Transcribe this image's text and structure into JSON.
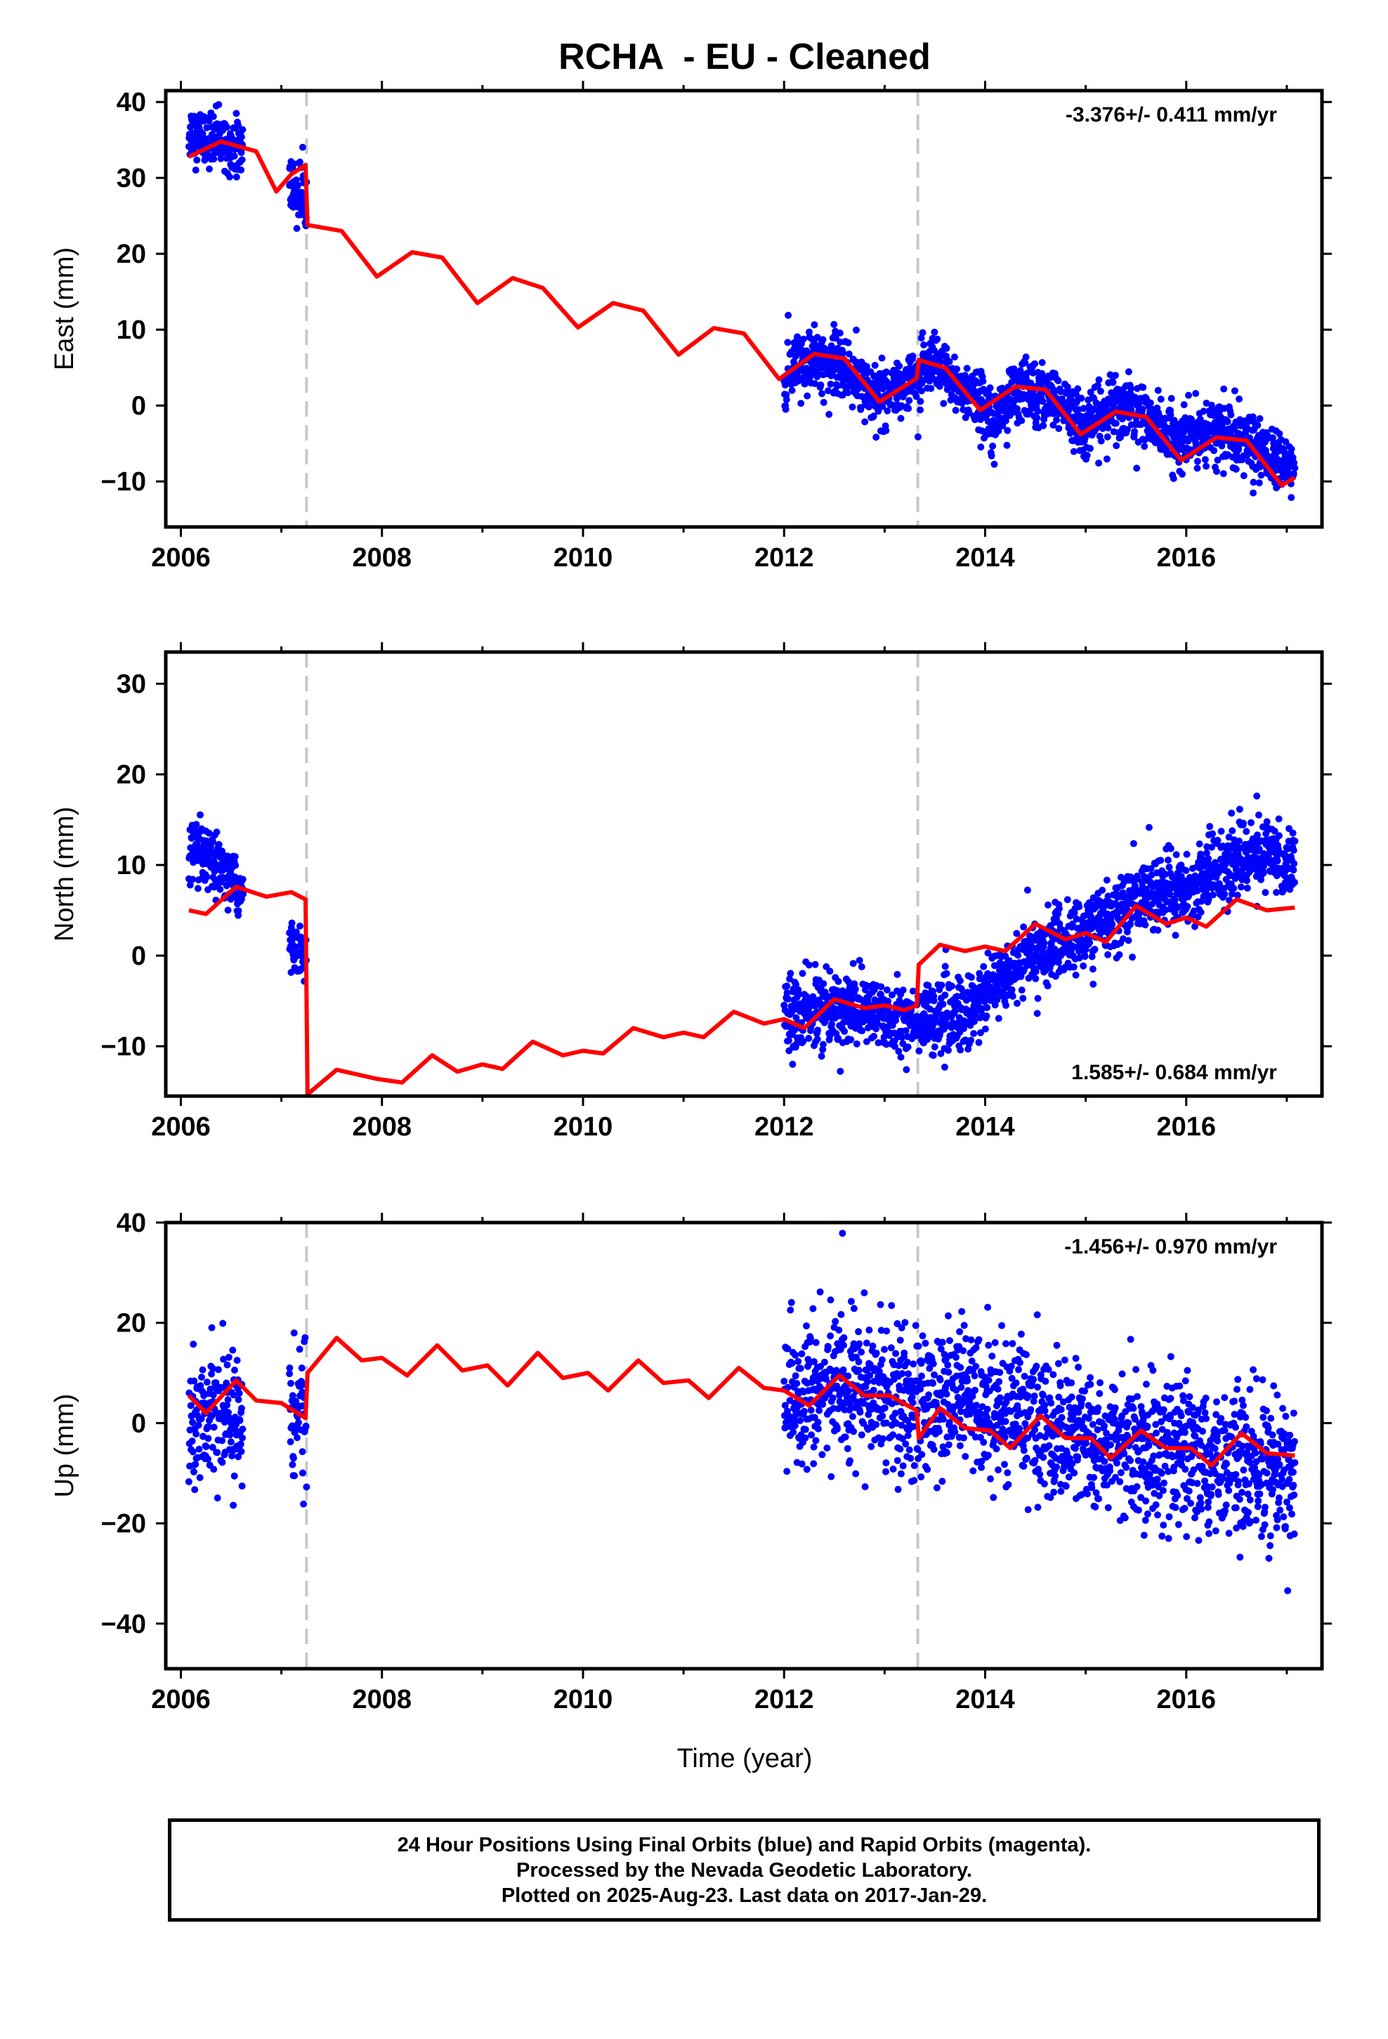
{
  "chart_data": {
    "type": "scatter",
    "title": "RCHA  - EU - Cleaned",
    "xlabel": "Time (year)",
    "xlim": [
      2005.85,
      2017.35
    ],
    "xticks": [
      2006,
      2008,
      2010,
      2012,
      2014,
      2016
    ],
    "step_lines": [
      2007.25,
      2013.33
    ],
    "colors": {
      "data": "#0000ff",
      "model": "#ff0000",
      "steps": "#c8c8c8",
      "frame": "#000000"
    },
    "panels": [
      {
        "ylabel": "East (mm)",
        "ylim": [
          -16,
          41.5
        ],
        "yticks": [
          -10,
          0,
          10,
          20,
          30,
          40
        ],
        "rate": "-3.376+/- 0.411 mm/yr",
        "rate_position": "top-right",
        "data_segments": [
          {
            "start": 2006.08,
            "end": 2006.62,
            "values": [
              36,
              34
            ],
            "noise": 1.8
          },
          {
            "start": 2007.08,
            "end": 2007.25,
            "values": [
              29,
              27
            ],
            "noise": 2.2
          },
          {
            "start": 2012.0,
            "end": 2017.08,
            "values": [
              4,
              6,
              5,
              1,
              3,
              5,
              2,
              -1,
              2,
              1,
              -3,
              0,
              -1,
              -5,
              -3,
              -4,
              -6,
              -9
            ],
            "noise": 2.0
          }
        ],
        "model": {
          "x": [
            2006.08,
            2006.4,
            2006.75,
            2006.95,
            2007.1,
            2007.24,
            2007.26,
            2007.6,
            2007.95,
            2008.3,
            2008.6,
            2008.95,
            2009.3,
            2009.6,
            2009.95,
            2010.3,
            2010.6,
            2010.95,
            2011.3,
            2011.6,
            2011.95,
            2012.3,
            2012.6,
            2012.95,
            2013.32,
            2013.34,
            2013.6,
            2013.95,
            2014.3,
            2014.6,
            2014.95,
            2015.3,
            2015.6,
            2015.95,
            2016.3,
            2016.6,
            2016.95,
            2017.08
          ],
          "y": [
            32.8,
            34.8,
            33.5,
            28.2,
            30.5,
            31.7,
            23.8,
            23,
            17,
            20.2,
            19.5,
            13.5,
            16.8,
            15.5,
            10.3,
            13.5,
            12.5,
            6.7,
            10.2,
            9.5,
            3.5,
            6.8,
            6.2,
            0.5,
            3.6,
            6,
            5,
            -0.6,
            2.5,
            2.1,
            -3.8,
            -0.8,
            -1.5,
            -7.2,
            -4.2,
            -4.6,
            -10.5,
            -9.5
          ]
        }
      },
      {
        "ylabel": "North (mm)",
        "ylim": [
          -15.5,
          33.5
        ],
        "yticks": [
          -10,
          0,
          10,
          20,
          30
        ],
        "rate": "1.585+/- 0.684 mm/yr",
        "rate_position": "bottom-right",
        "data_segments": [
          {
            "start": 2006.08,
            "end": 2006.62,
            "values": [
              12,
              7
            ],
            "noise": 1.6
          },
          {
            "start": 2007.08,
            "end": 2007.25,
            "values": [
              1,
              0
            ],
            "noise": 1.5
          },
          {
            "start": 2012.0,
            "end": 2017.08,
            "values": [
              -7,
              -6,
              -6,
              -6,
              -7,
              -7,
              -7,
              -6,
              -3,
              0,
              1,
              2,
              4,
              6,
              7,
              7,
              9,
              11,
              11,
              10
            ],
            "noise": 2.0
          }
        ],
        "model": {
          "x": [
            2006.08,
            2006.25,
            2006.55,
            2006.85,
            2007.1,
            2007.24,
            2007.26,
            2007.55,
            2007.95,
            2008.2,
            2008.5,
            2008.75,
            2009.0,
            2009.2,
            2009.5,
            2009.8,
            2010.0,
            2010.2,
            2010.5,
            2010.8,
            2011.0,
            2011.2,
            2011.5,
            2011.8,
            2012.0,
            2012.2,
            2012.5,
            2012.8,
            2013.0,
            2013.2,
            2013.32,
            2013.34,
            2013.55,
            2013.8,
            2014.0,
            2014.2,
            2014.5,
            2014.8,
            2015.0,
            2015.2,
            2015.5,
            2015.8,
            2016.0,
            2016.2,
            2016.5,
            2016.8,
            2017.08
          ],
          "y": [
            5,
            4.6,
            7.6,
            6.5,
            7,
            6.2,
            -15.3,
            -12.6,
            -13.6,
            -14,
            -11,
            -12.8,
            -12,
            -12.5,
            -9.5,
            -11,
            -10.5,
            -10.8,
            -8,
            -9,
            -8.5,
            -9,
            -6.2,
            -7.5,
            -7,
            -8,
            -4.8,
            -5.8,
            -5.5,
            -6,
            -5.5,
            -1,
            1.2,
            0.5,
            1,
            0.5,
            3.5,
            1.8,
            2.5,
            1.5,
            5.5,
            3.5,
            4.2,
            3.2,
            6.2,
            5,
            5.3
          ]
        }
      },
      {
        "ylabel": "Up (mm)",
        "ylim": [
          -49,
          40
        ],
        "yticks": [
          -40,
          -20,
          0,
          20,
          40
        ],
        "rate": "-1.456+/- 0.970 mm/yr",
        "rate_position": "top-right",
        "data_segments": [
          {
            "start": 2006.08,
            "end": 2006.62,
            "values": [
              2,
              0
            ],
            "noise": 6
          },
          {
            "start": 2007.08,
            "end": 2007.25,
            "values": [
              5,
              3
            ],
            "noise": 8
          },
          {
            "start": 2012.0,
            "end": 2017.08,
            "values": [
              4,
              6,
              8,
              6,
              3,
              4,
              5,
              3,
              2,
              0,
              -3,
              -4,
              -5,
              -7,
              -9,
              -8,
              -9,
              -10
            ],
            "noise": 7
          }
        ],
        "model": {
          "x": [
            2006.08,
            2006.25,
            2006.55,
            2006.75,
            2007.0,
            2007.24,
            2007.26,
            2007.55,
            2007.8,
            2008.0,
            2008.25,
            2008.55,
            2008.8,
            2009.05,
            2009.25,
            2009.55,
            2009.8,
            2010.05,
            2010.25,
            2010.55,
            2010.8,
            2011.05,
            2011.25,
            2011.55,
            2011.8,
            2012.0,
            2012.25,
            2012.55,
            2012.8,
            2013.05,
            2013.32,
            2013.34,
            2013.55,
            2013.8,
            2014.05,
            2014.25,
            2014.55,
            2014.8,
            2015.05,
            2015.25,
            2015.55,
            2015.8,
            2016.05,
            2016.25,
            2016.55,
            2016.8,
            2017.08
          ],
          "y": [
            5.5,
            2,
            8.5,
            4.5,
            4,
            1,
            10,
            17,
            12.5,
            13,
            9.5,
            15.5,
            10.5,
            11.5,
            7.5,
            14,
            9,
            10,
            6.5,
            12.5,
            8,
            8.5,
            5,
            11,
            7,
            6.5,
            3.5,
            9.5,
            5.5,
            5.5,
            2.5,
            -3,
            3,
            -1,
            -1.5,
            -5,
            1.5,
            -3,
            -3,
            -7,
            -1.5,
            -5,
            -5,
            -8.5,
            -2,
            -6,
            -6.5
          ]
        }
      }
    ]
  },
  "footer": {
    "line1": "24 Hour Positions Using Final Orbits (blue) and Rapid Orbits (magenta).",
    "line2": "Processed by the Nevada Geodetic Laboratory.",
    "line3": "Plotted on 2025-Aug-23. Last data on 2017-Jan-29."
  }
}
